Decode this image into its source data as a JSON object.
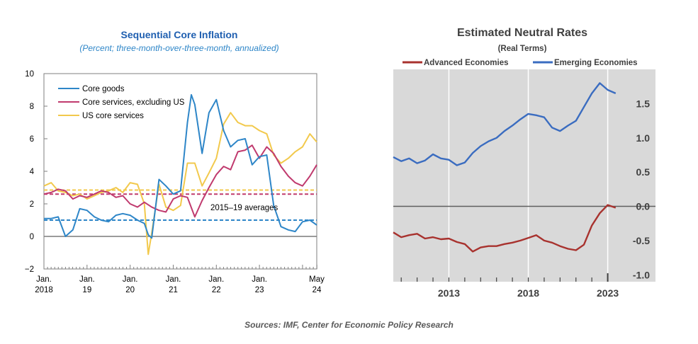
{
  "source": "Sources: IMF, Center for Economic Policy Research",
  "colors": {
    "core_goods": "#2e86c8",
    "core_services_ex_us": "#c03a6e",
    "us_core_services": "#f2c94c",
    "title_blue": "#1f5fb0",
    "advanced": "#a8322e",
    "emerging": "#3a6cc0",
    "panel_bg": "#d9d9d9"
  },
  "chart_data": [
    {
      "type": "line",
      "title": "Sequential Core Inflation",
      "subtitle": "(Percent; three-month-over-three-month, annualized)",
      "ylim": [
        -2,
        10
      ],
      "y_ticks": [
        "−2",
        "0",
        "2",
        "4",
        "6",
        "8",
        "10"
      ],
      "y_tick_values": [
        -2,
        0,
        2,
        4,
        6,
        8,
        10
      ],
      "xlim": [
        2018.0,
        2024.33
      ],
      "x_ticks": [
        {
          "value": 2018.0,
          "line1": "Jan.",
          "line2": "2018"
        },
        {
          "value": 2019.0,
          "line1": "Jan.",
          "line2": "19"
        },
        {
          "value": 2020.0,
          "line1": "Jan.",
          "line2": "20"
        },
        {
          "value": 2021.0,
          "line1": "Jan.",
          "line2": "21"
        },
        {
          "value": 2022.0,
          "line1": "Jan.",
          "line2": "22"
        },
        {
          "value": 2023.0,
          "line1": "Jan.",
          "line2": "23"
        },
        {
          "value": 2024.33,
          "line1": "May",
          "line2": "24"
        }
      ],
      "legend_position": "top-left",
      "series": [
        {
          "name": "Core goods",
          "color_key": "core_goods",
          "x": [
            2018.0,
            2018.17,
            2018.33,
            2018.5,
            2018.67,
            2018.83,
            2019.0,
            2019.17,
            2019.33,
            2019.5,
            2019.67,
            2019.83,
            2020.0,
            2020.17,
            2020.33,
            2020.42,
            2020.5,
            2020.67,
            2020.83,
            2021.0,
            2021.17,
            2021.33,
            2021.42,
            2021.5,
            2021.67,
            2021.83,
            2022.0,
            2022.17,
            2022.33,
            2022.5,
            2022.67,
            2022.83,
            2023.0,
            2023.17,
            2023.33,
            2023.5,
            2023.67,
            2023.83,
            2024.0,
            2024.17,
            2024.33
          ],
          "y": [
            1.1,
            1.1,
            1.2,
            0.0,
            0.4,
            1.7,
            1.6,
            1.2,
            1.0,
            0.9,
            1.3,
            1.4,
            1.3,
            1.0,
            0.8,
            0.1,
            -0.1,
            3.5,
            3.1,
            2.6,
            2.8,
            7.0,
            8.7,
            8.1,
            5.1,
            7.6,
            8.4,
            6.5,
            5.5,
            5.9,
            6.0,
            4.4,
            4.9,
            5.0,
            1.9,
            0.6,
            0.4,
            0.3,
            0.9,
            1.0,
            0.7
          ]
        },
        {
          "name": "Core services, excluding US",
          "color_key": "core_services_ex_us",
          "x": [
            2018.0,
            2018.17,
            2018.33,
            2018.5,
            2018.67,
            2018.83,
            2019.0,
            2019.17,
            2019.33,
            2019.5,
            2019.67,
            2019.83,
            2020.0,
            2020.17,
            2020.33,
            2020.5,
            2020.67,
            2020.83,
            2021.0,
            2021.17,
            2021.33,
            2021.5,
            2021.67,
            2021.83,
            2022.0,
            2022.17,
            2022.33,
            2022.5,
            2022.67,
            2022.83,
            2023.0,
            2023.17,
            2023.33,
            2023.5,
            2023.67,
            2023.83,
            2024.0,
            2024.17,
            2024.33
          ],
          "y": [
            2.6,
            2.7,
            2.9,
            2.8,
            2.3,
            2.5,
            2.4,
            2.6,
            2.8,
            2.7,
            2.4,
            2.5,
            2.0,
            1.8,
            2.1,
            1.8,
            1.6,
            1.5,
            2.3,
            2.5,
            2.4,
            1.2,
            2.2,
            3.0,
            3.8,
            4.3,
            4.1,
            5.2,
            5.3,
            5.6,
            4.8,
            5.5,
            5.1,
            4.3,
            3.7,
            3.3,
            3.1,
            3.7,
            4.4
          ]
        },
        {
          "name": "US core services",
          "color_key": "us_core_services",
          "x": [
            2018.0,
            2018.17,
            2018.33,
            2018.5,
            2018.67,
            2018.83,
            2019.0,
            2019.17,
            2019.33,
            2019.5,
            2019.67,
            2019.83,
            2020.0,
            2020.17,
            2020.33,
            2020.42,
            2020.5,
            2020.67,
            2020.83,
            2021.0,
            2021.17,
            2021.33,
            2021.5,
            2021.67,
            2021.83,
            2022.0,
            2022.17,
            2022.33,
            2022.5,
            2022.67,
            2022.83,
            2023.0,
            2023.17,
            2023.33,
            2023.5,
            2023.67,
            2023.83,
            2024.0,
            2024.17,
            2024.33
          ],
          "y": [
            3.1,
            3.3,
            2.8,
            2.7,
            2.5,
            2.6,
            2.3,
            2.5,
            2.7,
            2.8,
            3.0,
            2.7,
            3.3,
            3.2,
            2.0,
            -1.1,
            0.2,
            3.2,
            1.8,
            1.6,
            1.9,
            4.5,
            4.5,
            3.1,
            3.9,
            4.8,
            6.9,
            7.6,
            7.0,
            6.8,
            6.8,
            6.5,
            6.3,
            5.0,
            4.5,
            4.8,
            5.2,
            5.5,
            6.3,
            5.8
          ]
        }
      ],
      "reference_lines": [
        {
          "name": "Core goods 2015–19 average",
          "y": 1.0,
          "color_key": "core_goods"
        },
        {
          "name": "Core services, excluding US 2015–19 average",
          "y": 2.6,
          "color_key": "core_services_ex_us"
        },
        {
          "name": "US core services 2015–19 average",
          "y": 2.85,
          "color_key": "us_core_services"
        }
      ],
      "annotation": "2015–19 averages"
    },
    {
      "type": "line",
      "title": "Estimated  Neutral Rates",
      "subtitle": "(Real Terms)",
      "ylim": [
        -1.0,
        1.9
      ],
      "y_ticks": [
        "1.5",
        "1.0",
        "0.5",
        "0.0",
        "-0.5",
        "-1.0"
      ],
      "y_tick_values": [
        1.5,
        1.0,
        0.5,
        0.0,
        -0.5,
        -1.0
      ],
      "xlim": [
        2009.5,
        2024.0
      ],
      "x_ticks": [
        "2013",
        "2018",
        "2023"
      ],
      "x_tick_values": [
        2013,
        2018,
        2023
      ],
      "grid": true,
      "legend_position": "top",
      "series": [
        {
          "name": "Advanced Economies",
          "color_key": "advanced",
          "x": [
            2009.5,
            2010.0,
            2010.5,
            2011.0,
            2011.5,
            2012.0,
            2012.5,
            2013.0,
            2013.5,
            2014.0,
            2014.5,
            2015.0,
            2015.5,
            2016.0,
            2016.5,
            2017.0,
            2017.5,
            2018.0,
            2018.5,
            2019.0,
            2019.5,
            2020.0,
            2020.5,
            2021.0,
            2021.5,
            2022.0,
            2022.5,
            2023.0,
            2023.5
          ],
          "y": [
            -0.38,
            -0.45,
            -0.42,
            -0.4,
            -0.47,
            -0.45,
            -0.48,
            -0.47,
            -0.52,
            -0.55,
            -0.66,
            -0.6,
            -0.58,
            -0.58,
            -0.55,
            -0.53,
            -0.5,
            -0.46,
            -0.42,
            -0.5,
            -0.53,
            -0.58,
            -0.62,
            -0.64,
            -0.56,
            -0.28,
            -0.1,
            0.02,
            -0.02
          ]
        },
        {
          "name": "Emerging Economies",
          "color_key": "emerging",
          "x": [
            2009.5,
            2010.0,
            2010.5,
            2011.0,
            2011.5,
            2012.0,
            2012.5,
            2013.0,
            2013.5,
            2014.0,
            2014.5,
            2015.0,
            2015.5,
            2016.0,
            2016.5,
            2017.0,
            2017.5,
            2018.0,
            2018.5,
            2019.0,
            2019.5,
            2020.0,
            2020.5,
            2021.0,
            2021.5,
            2022.0,
            2022.5,
            2023.0,
            2023.5
          ],
          "y": [
            0.72,
            0.66,
            0.7,
            0.63,
            0.67,
            0.76,
            0.7,
            0.68,
            0.6,
            0.64,
            0.78,
            0.88,
            0.95,
            1.0,
            1.1,
            1.18,
            1.27,
            1.35,
            1.33,
            1.3,
            1.15,
            1.1,
            1.18,
            1.25,
            1.45,
            1.65,
            1.8,
            1.7,
            1.65
          ]
        }
      ]
    }
  ]
}
